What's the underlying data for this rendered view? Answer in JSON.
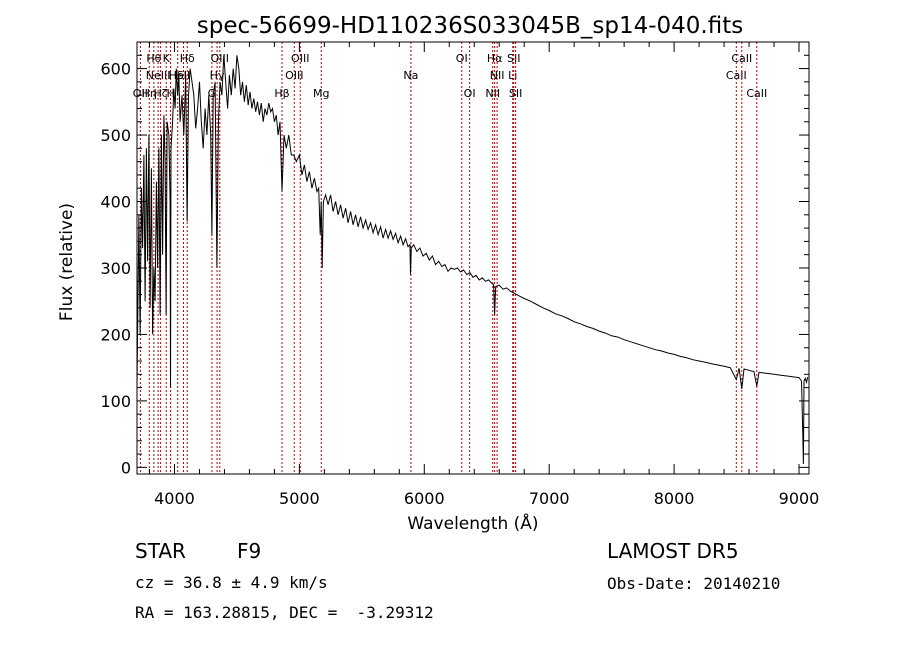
{
  "chart_data": {
    "type": "line",
    "title": "spec-56699-HD110236S033045B_sp14-040.fits",
    "xlabel": "Wavelength (Å)",
    "ylabel": "Flux (relative)",
    "xlim": [
      3700,
      9080
    ],
    "ylim": [
      -10,
      640
    ],
    "grid": false,
    "x_ticks": [
      4000,
      5000,
      6000,
      7000,
      8000,
      9000
    ],
    "y_ticks": [
      0,
      100,
      200,
      300,
      400,
      500,
      600
    ],
    "series": [
      {
        "points": [
          [
            3700,
            120
          ],
          [
            3715,
            380
          ],
          [
            3725,
            200
          ],
          [
            3735,
            420
          ],
          [
            3745,
            330
          ],
          [
            3755,
            470
          ],
          [
            3765,
            250
          ],
          [
            3775,
            480
          ],
          [
            3785,
            310
          ],
          [
            3795,
            500
          ],
          [
            3805,
            240
          ],
          [
            3815,
            450
          ],
          [
            3825,
            200
          ],
          [
            3835,
            300
          ],
          [
            3845,
            250
          ],
          [
            3855,
            430
          ],
          [
            3865,
            300
          ],
          [
            3875,
            480
          ],
          [
            3885,
            230
          ],
          [
            3895,
            500
          ],
          [
            3905,
            320
          ],
          [
            3915,
            530
          ],
          [
            3925,
            460
          ],
          [
            3933,
            230
          ],
          [
            3941,
            520
          ],
          [
            3955,
            500
          ],
          [
            3965,
            400
          ],
          [
            3968,
            120
          ],
          [
            3972,
            480
          ],
          [
            3985,
            520
          ],
          [
            3995,
            570
          ],
          [
            4005,
            540
          ],
          [
            4015,
            600
          ],
          [
            4025,
            560
          ],
          [
            4035,
            590
          ],
          [
            4045,
            520
          ],
          [
            4060,
            560
          ],
          [
            4075,
            500
          ],
          [
            4090,
            590
          ],
          [
            4101,
            370
          ],
          [
            4112,
            560
          ],
          [
            4125,
            600
          ],
          [
            4140,
            580
          ],
          [
            4155,
            560
          ],
          [
            4170,
            510
          ],
          [
            4185,
            540
          ],
          [
            4200,
            580
          ],
          [
            4215,
            520
          ],
          [
            4230,
            480
          ],
          [
            4245,
            540
          ],
          [
            4260,
            500
          ],
          [
            4275,
            560
          ],
          [
            4290,
            500
          ],
          [
            4300,
            350
          ],
          [
            4310,
            560
          ],
          [
            4325,
            580
          ],
          [
            4340,
            300
          ],
          [
            4352,
            520
          ],
          [
            4365,
            580
          ],
          [
            4380,
            560
          ],
          [
            4395,
            620
          ],
          [
            4410,
            580
          ],
          [
            4425,
            540
          ],
          [
            4440,
            590
          ],
          [
            4455,
            560
          ],
          [
            4470,
            600
          ],
          [
            4485,
            570
          ],
          [
            4500,
            620
          ],
          [
            4515,
            600
          ],
          [
            4530,
            560
          ],
          [
            4545,
            580
          ],
          [
            4560,
            550
          ],
          [
            4575,
            575
          ],
          [
            4590,
            545
          ],
          [
            4605,
            565
          ],
          [
            4620,
            540
          ],
          [
            4635,
            555
          ],
          [
            4650,
            535
          ],
          [
            4665,
            550
          ],
          [
            4680,
            530
          ],
          [
            4695,
            548
          ],
          [
            4710,
            520
          ],
          [
            4725,
            540
          ],
          [
            4740,
            530
          ],
          [
            4755,
            548
          ],
          [
            4770,
            535
          ],
          [
            4785,
            540
          ],
          [
            4800,
            520
          ],
          [
            4815,
            530
          ],
          [
            4830,
            500
          ],
          [
            4845,
            520
          ],
          [
            4861,
            415
          ],
          [
            4877,
            500
          ],
          [
            4895,
            480
          ],
          [
            4915,
            500
          ],
          [
            4935,
            470
          ],
          [
            4955,
            470
          ],
          [
            4975,
            460
          ],
          [
            5000,
            470
          ],
          [
            5020,
            440
          ],
          [
            5040,
            455
          ],
          [
            5060,
            430
          ],
          [
            5080,
            445
          ],
          [
            5100,
            420
          ],
          [
            5120,
            435
          ],
          [
            5140,
            415
          ],
          [
            5155,
            420
          ],
          [
            5167,
            350
          ],
          [
            5175,
            400
          ],
          [
            5183,
            300
          ],
          [
            5192,
            400
          ],
          [
            5210,
            410
          ],
          [
            5230,
            395
          ],
          [
            5250,
            410
          ],
          [
            5270,
            385
          ],
          [
            5290,
            400
          ],
          [
            5310,
            380
          ],
          [
            5330,
            395
          ],
          [
            5350,
            375
          ],
          [
            5370,
            390
          ],
          [
            5390,
            368
          ],
          [
            5410,
            385
          ],
          [
            5430,
            365
          ],
          [
            5450,
            380
          ],
          [
            5470,
            362
          ],
          [
            5490,
            377
          ],
          [
            5510,
            360
          ],
          [
            5530,
            372
          ],
          [
            5550,
            358
          ],
          [
            5570,
            368
          ],
          [
            5590,
            353
          ],
          [
            5610,
            365
          ],
          [
            5630,
            350
          ],
          [
            5650,
            362
          ],
          [
            5670,
            345
          ],
          [
            5690,
            358
          ],
          [
            5710,
            345
          ],
          [
            5730,
            356
          ],
          [
            5750,
            343
          ],
          [
            5770,
            352
          ],
          [
            5790,
            338
          ],
          [
            5810,
            348
          ],
          [
            5830,
            335
          ],
          [
            5850,
            344
          ],
          [
            5870,
            332
          ],
          [
            5885,
            335
          ],
          [
            5890,
            290
          ],
          [
            5896,
            330
          ],
          [
            5915,
            335
          ],
          [
            5940,
            325
          ],
          [
            5965,
            330
          ],
          [
            5990,
            318
          ],
          [
            6015,
            322
          ],
          [
            6040,
            312
          ],
          [
            6065,
            318
          ],
          [
            6090,
            305
          ],
          [
            6115,
            310
          ],
          [
            6140,
            302
          ],
          [
            6165,
            305
          ],
          [
            6190,
            295
          ],
          [
            6215,
            300
          ],
          [
            6240,
            298
          ],
          [
            6265,
            300
          ],
          [
            6290,
            294
          ],
          [
            6315,
            297
          ],
          [
            6340,
            290
          ],
          [
            6365,
            293
          ],
          [
            6390,
            286
          ],
          [
            6415,
            289
          ],
          [
            6440,
            282
          ],
          [
            6465,
            285
          ],
          [
            6490,
            280
          ],
          [
            6515,
            282
          ],
          [
            6540,
            277
          ],
          [
            6555,
            275
          ],
          [
            6563,
            230
          ],
          [
            6572,
            272
          ],
          [
            6600,
            274
          ],
          [
            6630,
            268
          ],
          [
            6660,
            270
          ],
          [
            6690,
            265
          ],
          [
            6720,
            262
          ],
          [
            6760,
            258
          ],
          [
            6800,
            254
          ],
          [
            6850,
            250
          ],
          [
            6900,
            245
          ],
          [
            6950,
            240
          ],
          [
            7000,
            236
          ],
          [
            7050,
            231
          ],
          [
            7100,
            228
          ],
          [
            7150,
            224
          ],
          [
            7200,
            219
          ],
          [
            7250,
            216
          ],
          [
            7300,
            212
          ],
          [
            7350,
            209
          ],
          [
            7400,
            205
          ],
          [
            7450,
            202
          ],
          [
            7500,
            198
          ],
          [
            7550,
            196
          ],
          [
            7600,
            192
          ],
          [
            7650,
            189
          ],
          [
            7700,
            186
          ],
          [
            7750,
            183
          ],
          [
            7800,
            180
          ],
          [
            7850,
            177
          ],
          [
            7900,
            175
          ],
          [
            7950,
            172
          ],
          [
            8000,
            170
          ],
          [
            8050,
            167
          ],
          [
            8100,
            165
          ],
          [
            8150,
            162
          ],
          [
            8200,
            160
          ],
          [
            8250,
            158
          ],
          [
            8300,
            156
          ],
          [
            8350,
            154
          ],
          [
            8400,
            152
          ],
          [
            8450,
            150
          ],
          [
            8498,
            132
          ],
          [
            8520,
            149
          ],
          [
            8542,
            118
          ],
          [
            8560,
            148
          ],
          [
            8600,
            146
          ],
          [
            8640,
            144
          ],
          [
            8662,
            122
          ],
          [
            8680,
            143
          ],
          [
            8720,
            142
          ],
          [
            8760,
            141
          ],
          [
            8800,
            140
          ],
          [
            8840,
            139
          ],
          [
            8880,
            138
          ],
          [
            8920,
            137
          ],
          [
            8960,
            136
          ],
          [
            9000,
            135
          ],
          [
            9020,
            130
          ],
          [
            9030,
            50
          ],
          [
            9035,
            5
          ],
          [
            9040,
            130
          ],
          [
            9050,
            134
          ],
          [
            9060,
            128
          ],
          [
            9070,
            136
          ]
        ]
      }
    ],
    "line_markers": [
      {
        "x": 3727,
        "label": "OII",
        "row": 3
      },
      {
        "x": 3798,
        "label": "Hη",
        "row": 3
      },
      {
        "x": 3835,
        "label": "Hθ",
        "row": 1
      },
      {
        "x": 3869,
        "label": "NeIII",
        "row": 2
      },
      {
        "x": 3889,
        "label": "Hζ",
        "row": 3
      },
      {
        "x": 3934,
        "label": "K",
        "row": 1
      },
      {
        "x": 3969,
        "label": "H",
        "row": 3
      },
      {
        "x": 4026,
        "label": "HeI",
        "row": 2
      },
      {
        "x": 4072,
        "label": "SII",
        "row": 2
      },
      {
        "x": 4102,
        "label": "Hδ",
        "row": 1
      },
      {
        "x": 4300,
        "label": "G",
        "row": 3
      },
      {
        "x": 4341,
        "label": "Hγ",
        "row": 2
      },
      {
        "x": 4363,
        "label": "OIII",
        "row": 1
      },
      {
        "x": 4861,
        "label": "Hβ",
        "row": 3
      },
      {
        "x": 4959,
        "label": "OIII",
        "row": 2
      },
      {
        "x": 5007,
        "label": "OIII",
        "row": 1
      },
      {
        "x": 5175,
        "label": "Mg",
        "row": 3
      },
      {
        "x": 5893,
        "label": "Na",
        "row": 2
      },
      {
        "x": 6300,
        "label": "OI",
        "row": 1
      },
      {
        "x": 6363,
        "label": "OI",
        "row": 3
      },
      {
        "x": 6548,
        "label": "NII",
        "row": 3
      },
      {
        "x": 6563,
        "label": "Hα",
        "row": 1
      },
      {
        "x": 6583,
        "label": "NII",
        "row": 2
      },
      {
        "x": 6708,
        "label": "Li",
        "row": 2
      },
      {
        "x": 6716,
        "label": "SII",
        "row": 1
      },
      {
        "x": 6731,
        "label": "SII",
        "row": 3
      },
      {
        "x": 8498,
        "label": "CaII",
        "row": 2
      },
      {
        "x": 8542,
        "label": "CaII",
        "row": 1
      },
      {
        "x": 8662,
        "label": "CaII",
        "row": 3
      }
    ],
    "marker_color": "#b00000",
    "line_color": "#000000"
  },
  "footer": {
    "object_class": "STAR",
    "subclass": "F9",
    "survey": "LAMOST DR5",
    "redshift_text": "cz = 36.8 ± 4.9 km/s",
    "obs_date_text": "Obs-Date: 20140210",
    "coords_text": "RA = 163.28815, DEC =  -3.29312"
  }
}
